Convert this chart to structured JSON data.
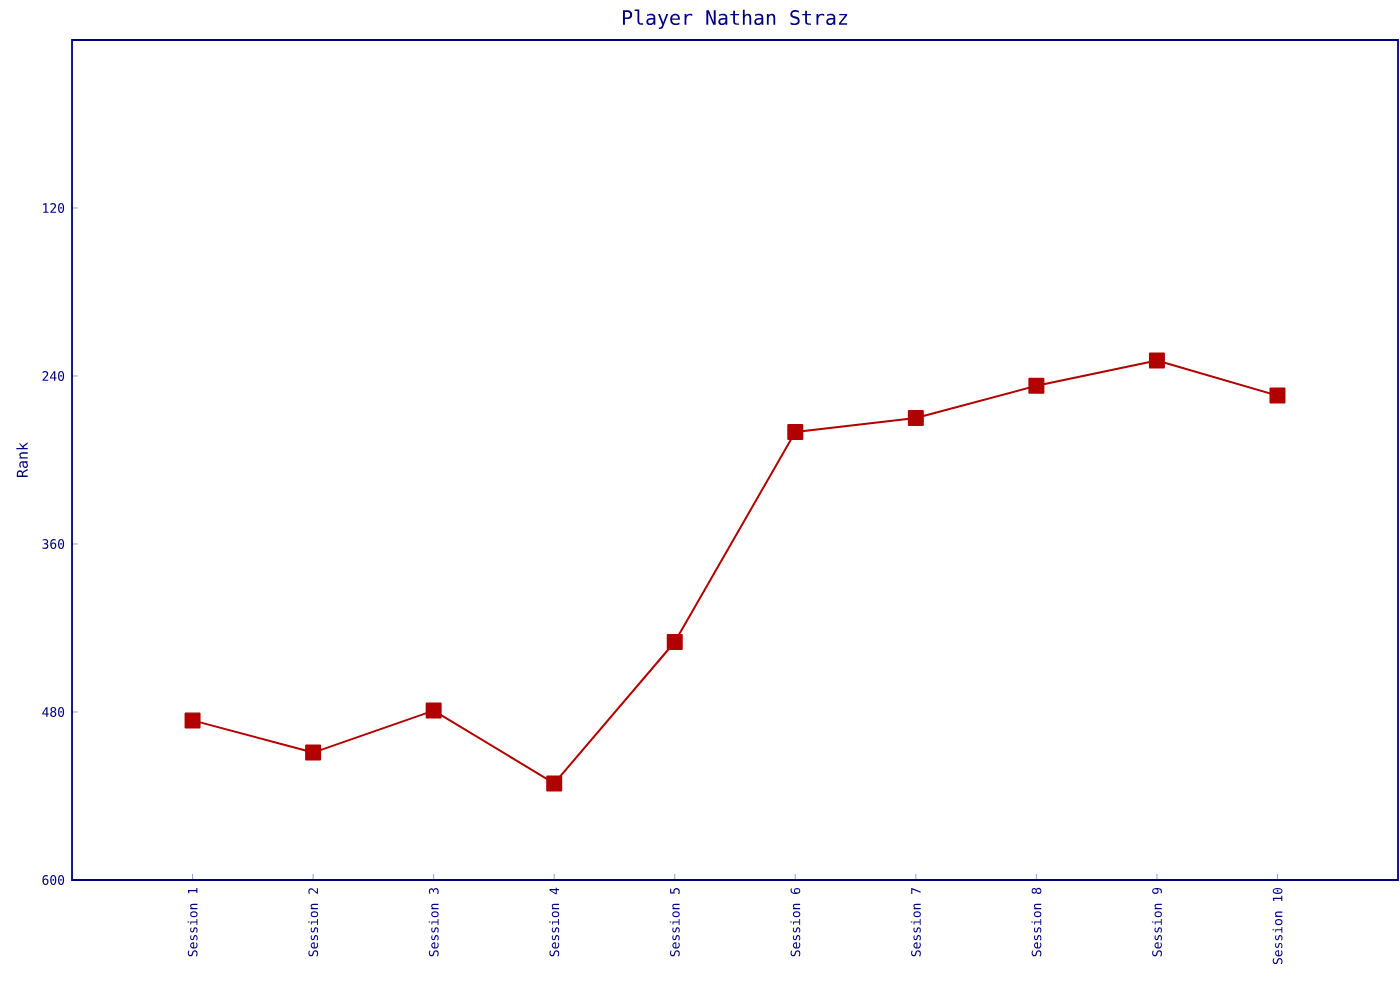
{
  "chart_data": {
    "type": "line",
    "title": "Player Nathan Straz",
    "ylabel": "Rank",
    "categories": [
      "Session 1",
      "Session 2",
      "Session 3",
      "Session 4",
      "Session 5",
      "Session 6",
      "Session 7",
      "Session 8",
      "Session 9",
      "Session 10"
    ],
    "series": [
      {
        "color": "#b00000",
        "values": [
          486,
          509,
          479,
          531,
          430,
          280,
          270,
          247,
          229,
          254
        ]
      }
    ],
    "ylim": [
      600,
      0
    ],
    "yticks": [
      120,
      240,
      360,
      480,
      600
    ],
    "marker": "square",
    "line_style": "solid"
  }
}
